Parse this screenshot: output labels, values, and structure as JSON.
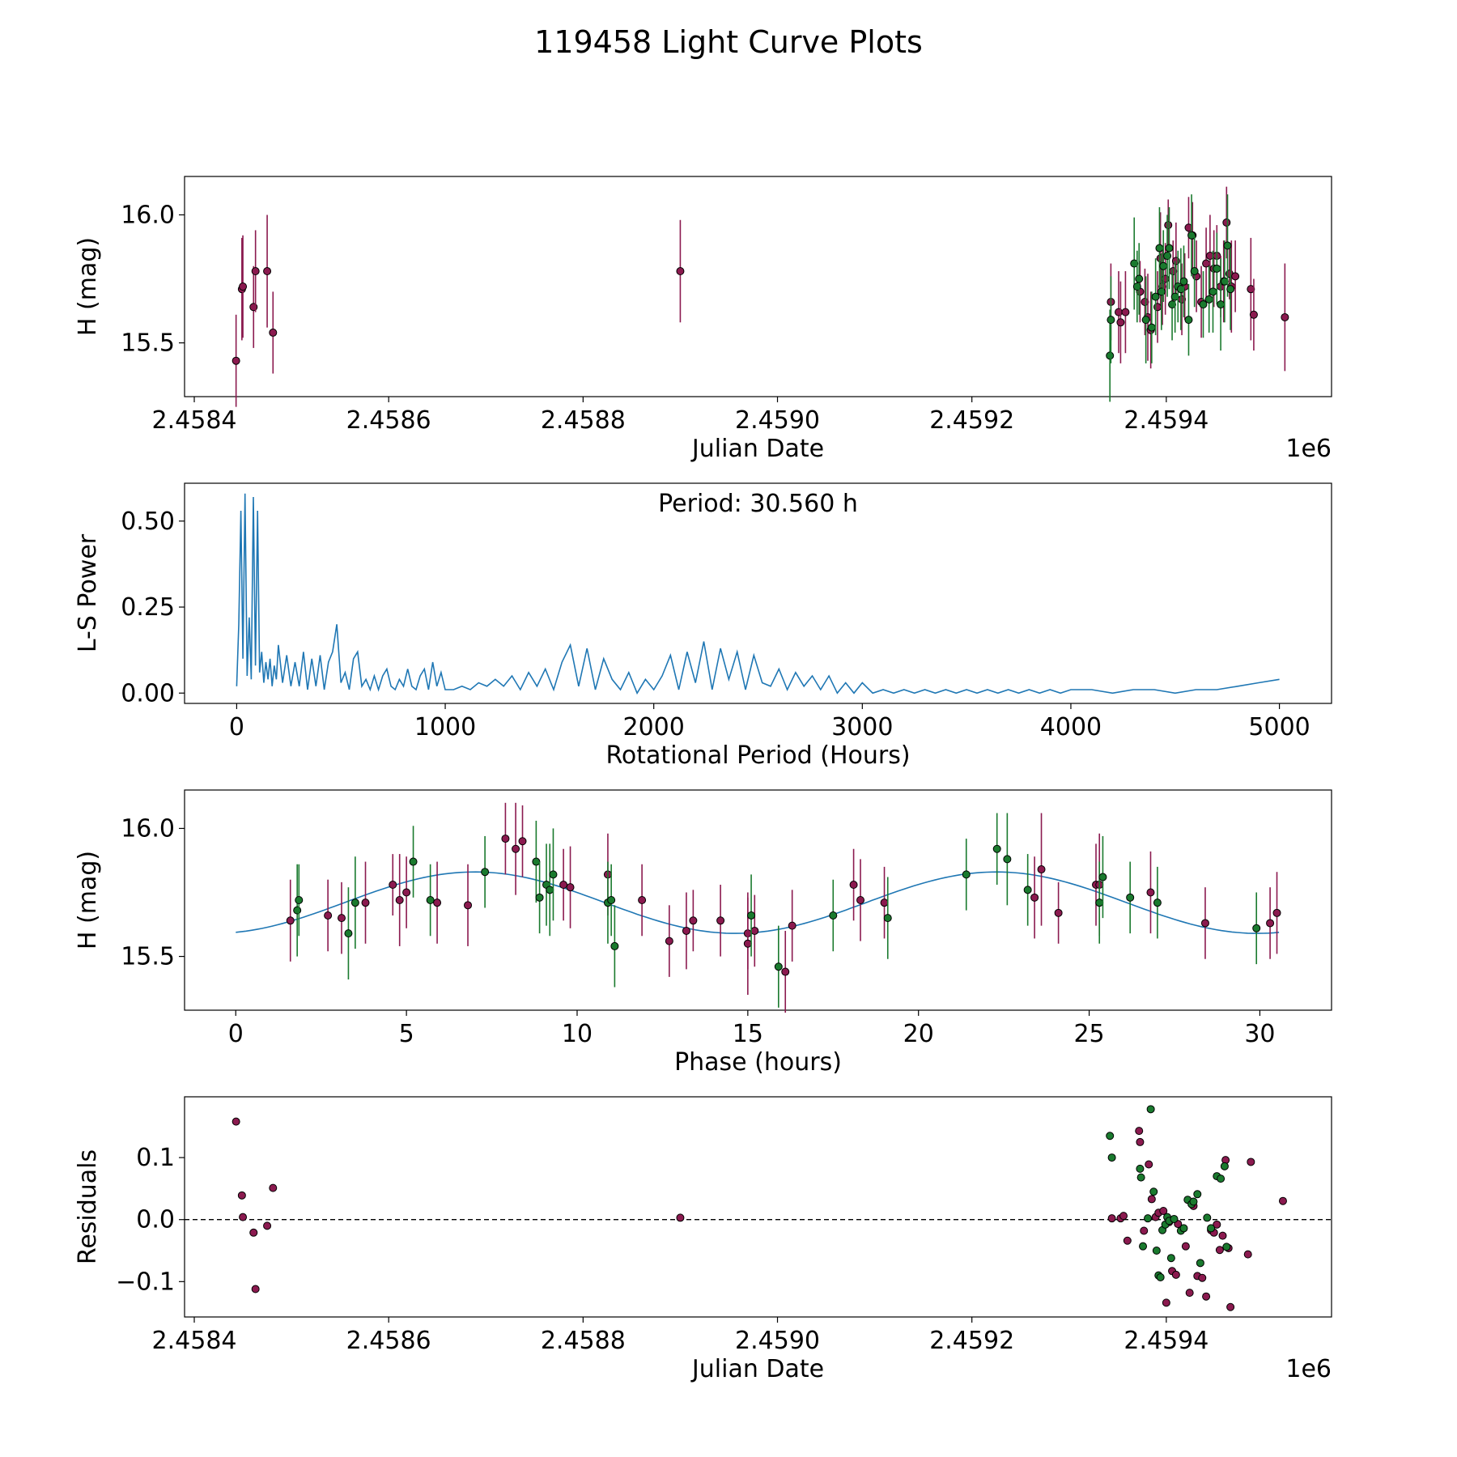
{
  "title": "119458 Light Curve Plots",
  "colors": {
    "ztf_g": "#1a7a2e",
    "ztf_r": "#8b1a4f",
    "periodogram": "#1f77b4",
    "fit": "#1f77b4",
    "edge": "#000000"
  },
  "chart_data": [
    {
      "id": "lightcurve",
      "type": "scatter",
      "xlabel": "Julian Date",
      "ylabel": "H (mag)",
      "offset_text": "1e6",
      "xlim": [
        2.45839,
        2.45957
      ],
      "ylim": [
        15.29,
        16.15
      ],
      "xticks": [
        2.4584,
        2.4586,
        2.4588,
        2.459,
        2.4592,
        2.4594
      ],
      "xtick_labels": [
        "2.4584",
        "2.4586",
        "2.4588",
        "2.4590",
        "2.4592",
        "2.4594"
      ],
      "yticks": [
        15.5,
        16.0
      ],
      "ytick_labels": [
        "15.5",
        "16.0"
      ],
      "series": [
        {
          "name": "r",
          "color": "#8b1a4f",
          "x": [
            2.458443,
            2.458449,
            2.45845,
            2.458461,
            2.458463,
            2.458475,
            2.458481,
            2.4589,
            2.459343,
            2.459351,
            2.459353,
            2.459358,
            2.459373,
            2.459378,
            2.459381,
            2.459384,
            2.459391,
            2.459394,
            2.459396,
            2.459399,
            2.459402,
            2.459407,
            2.45941,
            2.459416,
            2.459419,
            2.459423,
            2.459427,
            2.459431,
            2.459436,
            2.459441,
            2.459445,
            2.459449,
            2.459452,
            2.459456,
            2.459459,
            2.459462,
            2.459465,
            2.459467,
            2.459471,
            2.459487,
            2.45949,
            2.459522
          ],
          "y": [
            15.43,
            15.71,
            15.72,
            15.64,
            15.78,
            15.78,
            15.54,
            15.78,
            15.66,
            15.62,
            15.58,
            15.62,
            15.7,
            15.66,
            15.6,
            15.55,
            15.64,
            15.83,
            15.72,
            15.75,
            15.96,
            15.78,
            15.82,
            15.67,
            15.72,
            15.95,
            15.92,
            15.76,
            15.66,
            15.81,
            15.84,
            15.79,
            15.84,
            15.72,
            15.74,
            15.97,
            15.77,
            15.72,
            15.76,
            15.71,
            15.61,
            15.6
          ],
          "err": [
            0.18,
            0.2,
            0.2,
            0.16,
            0.16,
            0.22,
            0.16,
            0.2,
            0.15,
            0.16,
            0.16,
            0.16,
            0.12,
            0.13,
            0.17,
            0.15,
            0.14,
            0.18,
            0.15,
            0.14,
            0.1,
            0.12,
            0.15,
            0.14,
            0.13,
            0.12,
            0.13,
            0.14,
            0.14,
            0.14,
            0.16,
            0.15,
            0.12,
            0.12,
            0.16,
            0.14,
            0.1,
            0.18,
            0.14,
            0.2,
            0.14,
            0.21
          ]
        },
        {
          "name": "g",
          "color": "#1a7a2e",
          "x": [
            2.459342,
            2.459343,
            2.459367,
            2.45937,
            2.459372,
            2.459379,
            2.459385,
            2.459389,
            2.459393,
            2.459395,
            2.459397,
            2.459401,
            2.459403,
            2.459406,
            2.459409,
            2.459412,
            2.459415,
            2.459418,
            2.459423,
            2.459426,
            2.459429,
            2.459438,
            2.459444,
            2.459448,
            2.459452,
            2.459456,
            2.45946,
            2.459463,
            2.459466
          ],
          "y": [
            15.45,
            15.59,
            15.81,
            15.72,
            15.75,
            15.59,
            15.56,
            15.68,
            15.87,
            15.7,
            15.8,
            15.84,
            15.87,
            15.65,
            15.68,
            15.72,
            15.71,
            15.74,
            15.59,
            15.92,
            15.78,
            15.65,
            15.67,
            15.7,
            15.79,
            15.65,
            15.74,
            15.88,
            15.71
          ],
          "err": [
            0.18,
            0.17,
            0.18,
            0.14,
            0.14,
            0.17,
            0.14,
            0.15,
            0.16,
            0.15,
            0.14,
            0.16,
            0.16,
            0.14,
            0.14,
            0.14,
            0.16,
            0.14,
            0.14,
            0.16,
            0.14,
            0.13,
            0.13,
            0.16,
            0.14,
            0.18,
            0.16,
            0.2,
            0.16
          ]
        }
      ]
    },
    {
      "id": "periodogram",
      "type": "line",
      "xlabel": "Rotational Period (Hours)",
      "ylabel": "L-S Power",
      "annotation": "Period: 30.560 h",
      "xlim": [
        -250,
        5250
      ],
      "ylim": [
        -0.03,
        0.61
      ],
      "xticks": [
        0,
        1000,
        2000,
        3000,
        4000,
        5000
      ],
      "xtick_labels": [
        "0",
        "1000",
        "2000",
        "3000",
        "4000",
        "5000"
      ],
      "yticks": [
        0.0,
        0.25,
        0.5
      ],
      "ytick_labels": [
        "0.00",
        "0.25",
        "0.50"
      ],
      "x": [
        0,
        10,
        20,
        30,
        40,
        50,
        60,
        70,
        80,
        90,
        100,
        110,
        120,
        130,
        140,
        150,
        160,
        170,
        180,
        190,
        200,
        220,
        240,
        260,
        280,
        300,
        320,
        340,
        360,
        380,
        400,
        420,
        440,
        460,
        480,
        500,
        520,
        540,
        560,
        580,
        600,
        620,
        640,
        660,
        680,
        700,
        720,
        740,
        760,
        780,
        800,
        820,
        840,
        860,
        880,
        900,
        920,
        940,
        960,
        980,
        1000,
        1040,
        1080,
        1120,
        1160,
        1200,
        1240,
        1280,
        1320,
        1360,
        1400,
        1440,
        1480,
        1520,
        1560,
        1600,
        1640,
        1680,
        1720,
        1760,
        1800,
        1840,
        1880,
        1920,
        1960,
        2000,
        2040,
        2080,
        2120,
        2160,
        2200,
        2240,
        2280,
        2320,
        2360,
        2400,
        2440,
        2480,
        2520,
        2560,
        2600,
        2640,
        2680,
        2720,
        2760,
        2800,
        2840,
        2880,
        2920,
        2960,
        3000,
        3050,
        3100,
        3150,
        3200,
        3250,
        3300,
        3350,
        3400,
        3450,
        3500,
        3550,
        3600,
        3650,
        3700,
        3750,
        3800,
        3850,
        3900,
        3950,
        4000,
        4100,
        4200,
        4300,
        4400,
        4500,
        4600,
        4700,
        4800,
        4900,
        5000
      ],
      "y": [
        0.02,
        0.2,
        0.53,
        0.1,
        0.58,
        0.05,
        0.22,
        0.04,
        0.57,
        0.08,
        0.53,
        0.06,
        0.12,
        0.03,
        0.09,
        0.04,
        0.1,
        0.02,
        0.08,
        0.04,
        0.14,
        0.03,
        0.11,
        0.02,
        0.09,
        0.02,
        0.12,
        0.01,
        0.1,
        0.02,
        0.11,
        0.01,
        0.09,
        0.12,
        0.2,
        0.03,
        0.06,
        0.01,
        0.1,
        0.12,
        0.02,
        0.04,
        0.01,
        0.05,
        0.01,
        0.05,
        0.07,
        0.02,
        0.01,
        0.04,
        0.02,
        0.07,
        0.02,
        0.01,
        0.05,
        0.07,
        0.01,
        0.09,
        0.02,
        0.06,
        0.01,
        0.01,
        0.02,
        0.01,
        0.03,
        0.02,
        0.04,
        0.02,
        0.05,
        0.01,
        0.06,
        0.02,
        0.07,
        0.01,
        0.09,
        0.14,
        0.02,
        0.13,
        0.01,
        0.1,
        0.04,
        0.01,
        0.06,
        0.0,
        0.04,
        0.01,
        0.05,
        0.11,
        0.01,
        0.12,
        0.03,
        0.15,
        0.01,
        0.13,
        0.04,
        0.12,
        0.01,
        0.11,
        0.03,
        0.02,
        0.07,
        0.01,
        0.06,
        0.02,
        0.05,
        0.01,
        0.05,
        0.0,
        0.03,
        0.0,
        0.03,
        0.0,
        0.01,
        0.0,
        0.01,
        0.0,
        0.01,
        0.0,
        0.01,
        0.0,
        0.01,
        0.0,
        0.01,
        0.0,
        0.01,
        0.0,
        0.01,
        0.0,
        0.01,
        0.0,
        0.01,
        0.01,
        0.0,
        0.01,
        0.01,
        0.0,
        0.01,
        0.01,
        0.02,
        0.03,
        0.04
      ]
    },
    {
      "id": "phased",
      "type": "scatter",
      "xlabel": "Phase (hours)",
      "ylabel": "H (mag)",
      "xlim": [
        -1.5,
        32.1
      ],
      "ylim": [
        15.29,
        16.15
      ],
      "xticks": [
        0,
        5,
        10,
        15,
        20,
        25,
        30
      ],
      "xtick_labels": [
        "0",
        "5",
        "10",
        "15",
        "20",
        "25",
        "30"
      ],
      "yticks": [
        15.5,
        16.0
      ],
      "ytick_labels": [
        "15.5",
        "16.0"
      ],
      "fit": {
        "period": 30.56,
        "mean": 15.71,
        "amplitude": 0.12,
        "peak_phase": 7.0,
        "n": 200
      },
      "series": [
        {
          "name": "r",
          "color": "#8b1a4f",
          "x": [
            1.6,
            2.7,
            3.1,
            3.8,
            4.6,
            4.8,
            5.0,
            5.9,
            6.8,
            7.9,
            8.2,
            8.4,
            9.6,
            9.8,
            10.9,
            11.9,
            12.7,
            13.2,
            13.4,
            14.2,
            15.0,
            15.0,
            15.2,
            16.1,
            16.3,
            18.1,
            18.3,
            19.0,
            23.4,
            23.6,
            24.1,
            25.2,
            25.3,
            26.8,
            28.4,
            30.3,
            30.5
          ],
          "y": [
            15.64,
            15.66,
            15.65,
            15.71,
            15.78,
            15.72,
            15.75,
            15.71,
            15.7,
            15.96,
            15.92,
            15.95,
            15.78,
            15.77,
            15.82,
            15.72,
            15.56,
            15.6,
            15.64,
            15.64,
            15.59,
            15.55,
            15.6,
            15.44,
            15.62,
            15.78,
            15.72,
            15.71,
            15.73,
            15.84,
            15.67,
            15.78,
            15.78,
            15.75,
            15.63,
            15.63,
            15.67
          ],
          "err": [
            0.16,
            0.14,
            0.14,
            0.16,
            0.12,
            0.18,
            0.14,
            0.16,
            0.16,
            0.14,
            0.18,
            0.14,
            0.14,
            0.16,
            0.16,
            0.14,
            0.14,
            0.15,
            0.12,
            0.14,
            0.14,
            0.2,
            0.14,
            0.16,
            0.14,
            0.14,
            0.16,
            0.14,
            0.16,
            0.22,
            0.12,
            0.16,
            0.2,
            0.16,
            0.14,
            0.14,
            0.16
          ]
        },
        {
          "name": "g",
          "color": "#1a7a2e",
          "x": [
            1.8,
            1.85,
            3.3,
            3.5,
            5.2,
            5.7,
            7.3,
            8.8,
            8.9,
            9.1,
            9.2,
            9.3,
            10.9,
            11.0,
            11.1,
            15.1,
            15.9,
            17.5,
            19.1,
            21.4,
            22.3,
            22.6,
            23.2,
            25.3,
            25.4,
            26.2,
            27.0,
            29.9
          ],
          "y": [
            15.68,
            15.72,
            15.59,
            15.71,
            15.87,
            15.72,
            15.83,
            15.87,
            15.73,
            15.78,
            15.76,
            15.82,
            15.71,
            15.72,
            15.54,
            15.66,
            15.46,
            15.66,
            15.65,
            15.82,
            15.92,
            15.88,
            15.76,
            15.71,
            15.81,
            15.73,
            15.71,
            15.61
          ],
          "err": [
            0.18,
            0.14,
            0.18,
            0.18,
            0.14,
            0.14,
            0.14,
            0.16,
            0.14,
            0.16,
            0.18,
            0.18,
            0.16,
            0.14,
            0.16,
            0.16,
            0.16,
            0.14,
            0.16,
            0.14,
            0.14,
            0.18,
            0.14,
            0.16,
            0.16,
            0.14,
            0.14,
            0.14
          ]
        }
      ]
    },
    {
      "id": "residuals",
      "type": "scatter",
      "xlabel": "Julian Date",
      "ylabel": "Residuals",
      "offset_text": "1e6",
      "xlim": [
        2.45839,
        2.45957
      ],
      "ylim": [
        -0.157,
        0.198
      ],
      "xticks": [
        2.4584,
        2.4586,
        2.4588,
        2.459,
        2.4592,
        2.4594
      ],
      "xtick_labels": [
        "2.4584",
        "2.4586",
        "2.4588",
        "2.4590",
        "2.4592",
        "2.4594"
      ],
      "yticks": [
        -0.1,
        0.0,
        0.1
      ],
      "ytick_labels": [
        "−0.1",
        "0.0",
        "0.1"
      ],
      "zero_line": true,
      "series": [
        {
          "name": "r",
          "color": "#8b1a4f",
          "x": [
            2.458443,
            2.458449,
            2.45845,
            2.458461,
            2.458463,
            2.458475,
            2.458481,
            2.4589,
            2.459344,
            2.459353,
            2.459356,
            2.45936,
            2.459372,
            2.459373,
            2.459377,
            2.459382,
            2.459385,
            2.459389,
            2.459392,
            2.459397,
            2.4594,
            2.459403,
            2.459406,
            2.45941,
            2.459412,
            2.45942,
            2.459424,
            2.459428,
            2.459432,
            2.459437,
            2.459441,
            2.459446,
            2.459449,
            2.459452,
            2.459455,
            2.459458,
            2.459461,
            2.459464,
            2.459466,
            2.459484,
            2.459487,
            2.45952
          ],
          "y": [
            0.158,
            0.039,
            0.004,
            -0.021,
            -0.112,
            -0.01,
            0.051,
            0.003,
            0.002,
            0.002,
            0.006,
            -0.034,
            0.143,
            0.125,
            -0.018,
            0.089,
            0.033,
            0.004,
            0.011,
            0.014,
            -0.134,
            -0.004,
            -0.083,
            -0.089,
            -0.007,
            -0.043,
            -0.118,
            0.022,
            -0.091,
            -0.094,
            -0.124,
            -0.017,
            -0.021,
            -0.008,
            -0.049,
            -0.026,
            0.096,
            -0.046,
            -0.141,
            -0.056,
            0.093,
            0.03
          ],
          "zorder_skip": []
        },
        {
          "name": "g",
          "color": "#1a7a2e",
          "x": [
            2.459342,
            2.459344,
            2.459373,
            2.459374,
            2.459376,
            2.459381,
            2.459384,
            2.459387,
            2.45939,
            2.459392,
            2.459394,
            2.459396,
            2.459399,
            2.459401,
            2.459403,
            2.459405,
            2.459408,
            2.459415,
            2.459418,
            2.459422,
            2.459426,
            2.459428,
            2.459432,
            2.459435,
            2.459442,
            2.459446,
            2.459452,
            2.459456,
            2.45946,
            2.459462
          ],
          "y": [
            0.135,
            0.1,
            0.082,
            0.068,
            -0.043,
            0.002,
            0.178,
            0.045,
            -0.05,
            -0.09,
            -0.093,
            -0.017,
            -0.008,
            0.004,
            -0.002,
            -0.062,
            0.001,
            -0.018,
            -0.014,
            0.032,
            0.025,
            0.029,
            0.041,
            -0.07,
            0.003,
            -0.014,
            0.07,
            0.066,
            0.086,
            -0.044
          ]
        }
      ]
    }
  ]
}
